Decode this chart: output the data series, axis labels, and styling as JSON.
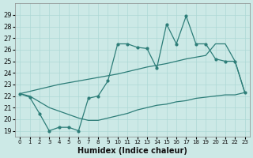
{
  "xlabel": "Humidex (Indice chaleur)",
  "bg_color": "#cce9e6",
  "line_color": "#2d7d78",
  "grid_color": "#add8d5",
  "x_values": [
    0,
    1,
    2,
    3,
    4,
    5,
    6,
    7,
    8,
    9,
    10,
    11,
    12,
    13,
    14,
    15,
    16,
    17,
    18,
    19,
    20,
    21,
    22,
    23
  ],
  "main_y": [
    22.2,
    21.9,
    20.5,
    19.0,
    19.3,
    19.3,
    19.0,
    21.8,
    22.0,
    23.3,
    26.5,
    26.5,
    26.2,
    26.1,
    24.4,
    28.2,
    26.5,
    28.9,
    26.5,
    26.5,
    25.2,
    25.0,
    25.0,
    22.3
  ],
  "upper_y": [
    22.2,
    22.4,
    22.6,
    22.8,
    23.0,
    23.15,
    23.3,
    23.45,
    23.6,
    23.75,
    23.9,
    24.1,
    24.3,
    24.5,
    24.65,
    24.8,
    25.0,
    25.2,
    25.35,
    25.5,
    26.5,
    26.5,
    25.0,
    22.3
  ],
  "lower_y": [
    22.2,
    22.0,
    21.5,
    21.0,
    20.7,
    20.4,
    20.1,
    19.9,
    19.9,
    20.1,
    20.3,
    20.5,
    20.8,
    21.0,
    21.2,
    21.3,
    21.5,
    21.6,
    21.8,
    21.9,
    22.0,
    22.1,
    22.1,
    22.3
  ],
  "ylim": [
    18.5,
    30.0
  ],
  "xlim": [
    -0.5,
    23.5
  ],
  "yticks": [
    19,
    20,
    21,
    22,
    23,
    24,
    25,
    26,
    27,
    28,
    29
  ],
  "xticks": [
    0,
    1,
    2,
    3,
    4,
    5,
    6,
    7,
    8,
    9,
    10,
    11,
    12,
    13,
    14,
    15,
    16,
    17,
    18,
    19,
    20,
    21,
    22,
    23
  ]
}
